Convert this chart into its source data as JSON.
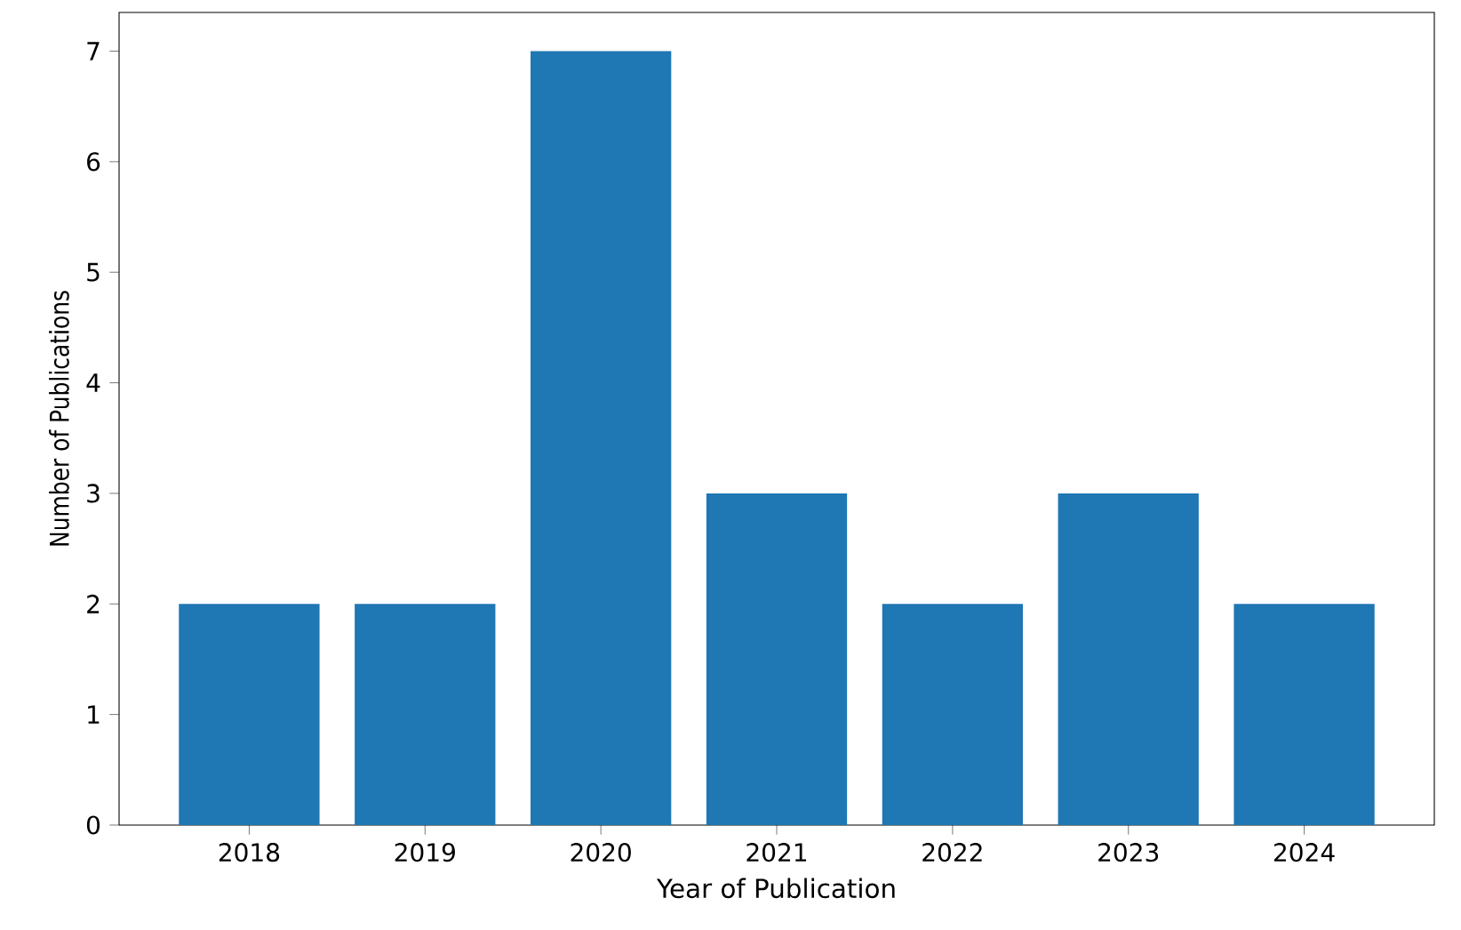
{
  "chart_data": {
    "type": "bar",
    "xlabel": "Year of Publication",
    "ylabel": "Number of Publications",
    "categories": [
      "2018",
      "2019",
      "2020",
      "2021",
      "2022",
      "2023",
      "2024"
    ],
    "values": [
      2,
      2,
      7,
      3,
      2,
      3,
      2
    ],
    "color": "#1f77b4",
    "ylim": [
      0,
      7.35
    ],
    "yticks": [
      0,
      1,
      2,
      3,
      4,
      5,
      6,
      7
    ],
    "grid": false
  }
}
